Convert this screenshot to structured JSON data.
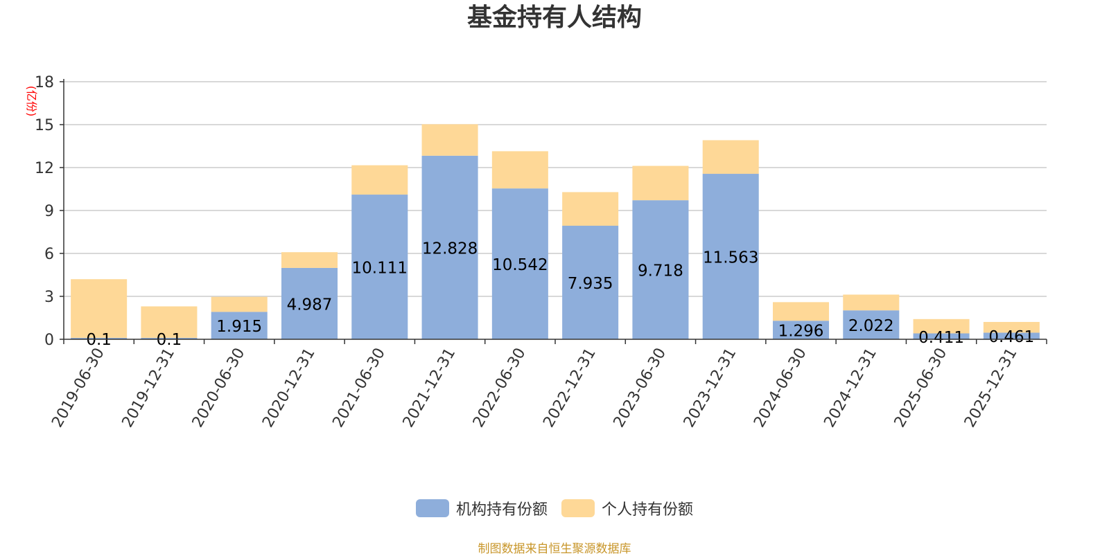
{
  "chart_data": {
    "type": "bar",
    "stacked": true,
    "title": "基金持有人结构",
    "ylabel": "(亿份)",
    "xlabel": "",
    "ylim": [
      0,
      18
    ],
    "yticks": [
      "0",
      "3",
      "6",
      "9",
      "12",
      "15",
      "18"
    ],
    "grid": true,
    "legend_position": "bottom",
    "categories": [
      "2019-06-30",
      "2019-12-31",
      "2020-06-30",
      "2020-12-31",
      "2021-06-30",
      "2021-12-31",
      "2022-06-30",
      "2022-12-31",
      "2023-06-30",
      "2023-12-31",
      "2024-06-30",
      "2024-12-31",
      "2025-06-30",
      "2025-12-31"
    ],
    "series": [
      {
        "name": "机构持有份额",
        "color": "#8eaedb",
        "values": [
          0.1,
          0.1,
          1.915,
          4.987,
          10.111,
          12.828,
          10.542,
          7.935,
          9.718,
          11.563,
          1.296,
          2.022,
          0.411,
          0.461
        ],
        "labels": [
          "0.1",
          "0.1",
          "1.915",
          "4.987",
          "10.111",
          "12.828",
          "10.542",
          "7.935",
          "9.718",
          "11.563",
          "1.296",
          "2.022",
          "0.411",
          "0.461"
        ]
      },
      {
        "name": "个人持有份额",
        "color": "#fed897",
        "values": [
          4.1,
          2.2,
          1.05,
          1.1,
          2.05,
          2.2,
          2.6,
          2.35,
          2.4,
          2.35,
          1.3,
          1.1,
          1.0,
          0.75
        ]
      }
    ]
  },
  "source": "制图数据来自恒生聚源数据库",
  "colors": {
    "axis": "#333333",
    "grid": "#cccccc",
    "ylabel": "#ff0000",
    "source": "#c8962a"
  }
}
